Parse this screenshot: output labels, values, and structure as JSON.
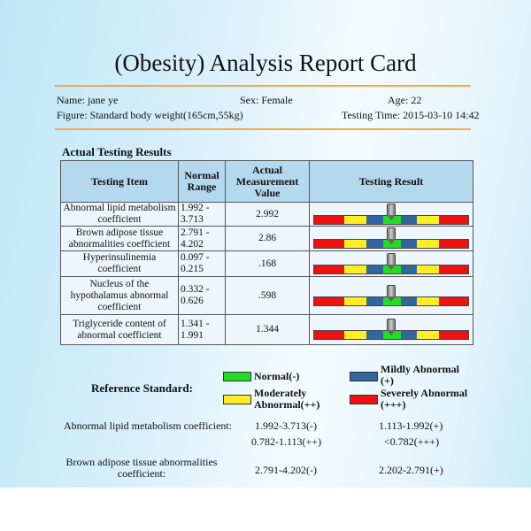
{
  "title": "(Obesity) Analysis Report Card",
  "info": {
    "name": "Name: jane ye",
    "sex": "Sex: Female",
    "age": "Age: 22",
    "figure": "Figure: Standard body weight(165cm,55kg)",
    "testing_time": "Testing Time: 2015-03-10 14:42"
  },
  "section_title": "Actual Testing Results",
  "table": {
    "headers": [
      "Testing Item",
      "Normal Range",
      "Actual Measurement Value",
      "Testing Result"
    ],
    "rows": [
      {
        "item": "Abnormal lipid metabolism coefficient",
        "range": "1.992 - 3.713",
        "value": "2.992",
        "result": "Normal(-)"
      },
      {
        "item": "Brown adipose tissue abnormalities coefficient",
        "range": "2.791 - 4.202",
        "value": "2.86",
        "result": "Normal(-)"
      },
      {
        "item": "Hyperinsulinemia coefficient",
        "range": "0.097 - 0.215",
        "value": ".168",
        "result": "Normal(-)"
      },
      {
        "item": "Nucleus of the hypothalamus abnormal coefficient",
        "range": "0.332 - 0.626",
        "value": ".598",
        "result": "Normal(-)"
      },
      {
        "item": "Triglyceride content of abnormal coefficient",
        "range": "1.341 - 1.991",
        "value": "1.344",
        "result": "Normal(-)"
      }
    ]
  },
  "scale_colors": {
    "severe": "#ee1111",
    "moderate": "#ffee22",
    "mild": "#33669e",
    "normal": "#22dd22"
  },
  "reference": {
    "label": "Reference Standard:",
    "legend": {
      "normal": "Normal(-)",
      "mild": "Mildly Abnormal (+)",
      "moderate": "Moderately Abnormal(++)",
      "severe": "Severely Abnormal (+++)"
    },
    "items": [
      {
        "name": "Abnormal lipid metabolism coefficient:",
        "normal": "1.992-3.713(-)",
        "mild": "1.113-1.992(+)",
        "moderate": "0.782-1.113(++)",
        "severe": "<0.782(+++)"
      },
      {
        "name": "Brown adipose tissue abnormalities coefficient:",
        "normal": "2.791-4.202(-)",
        "mild": "2.202-2.791(+)"
      }
    ]
  }
}
